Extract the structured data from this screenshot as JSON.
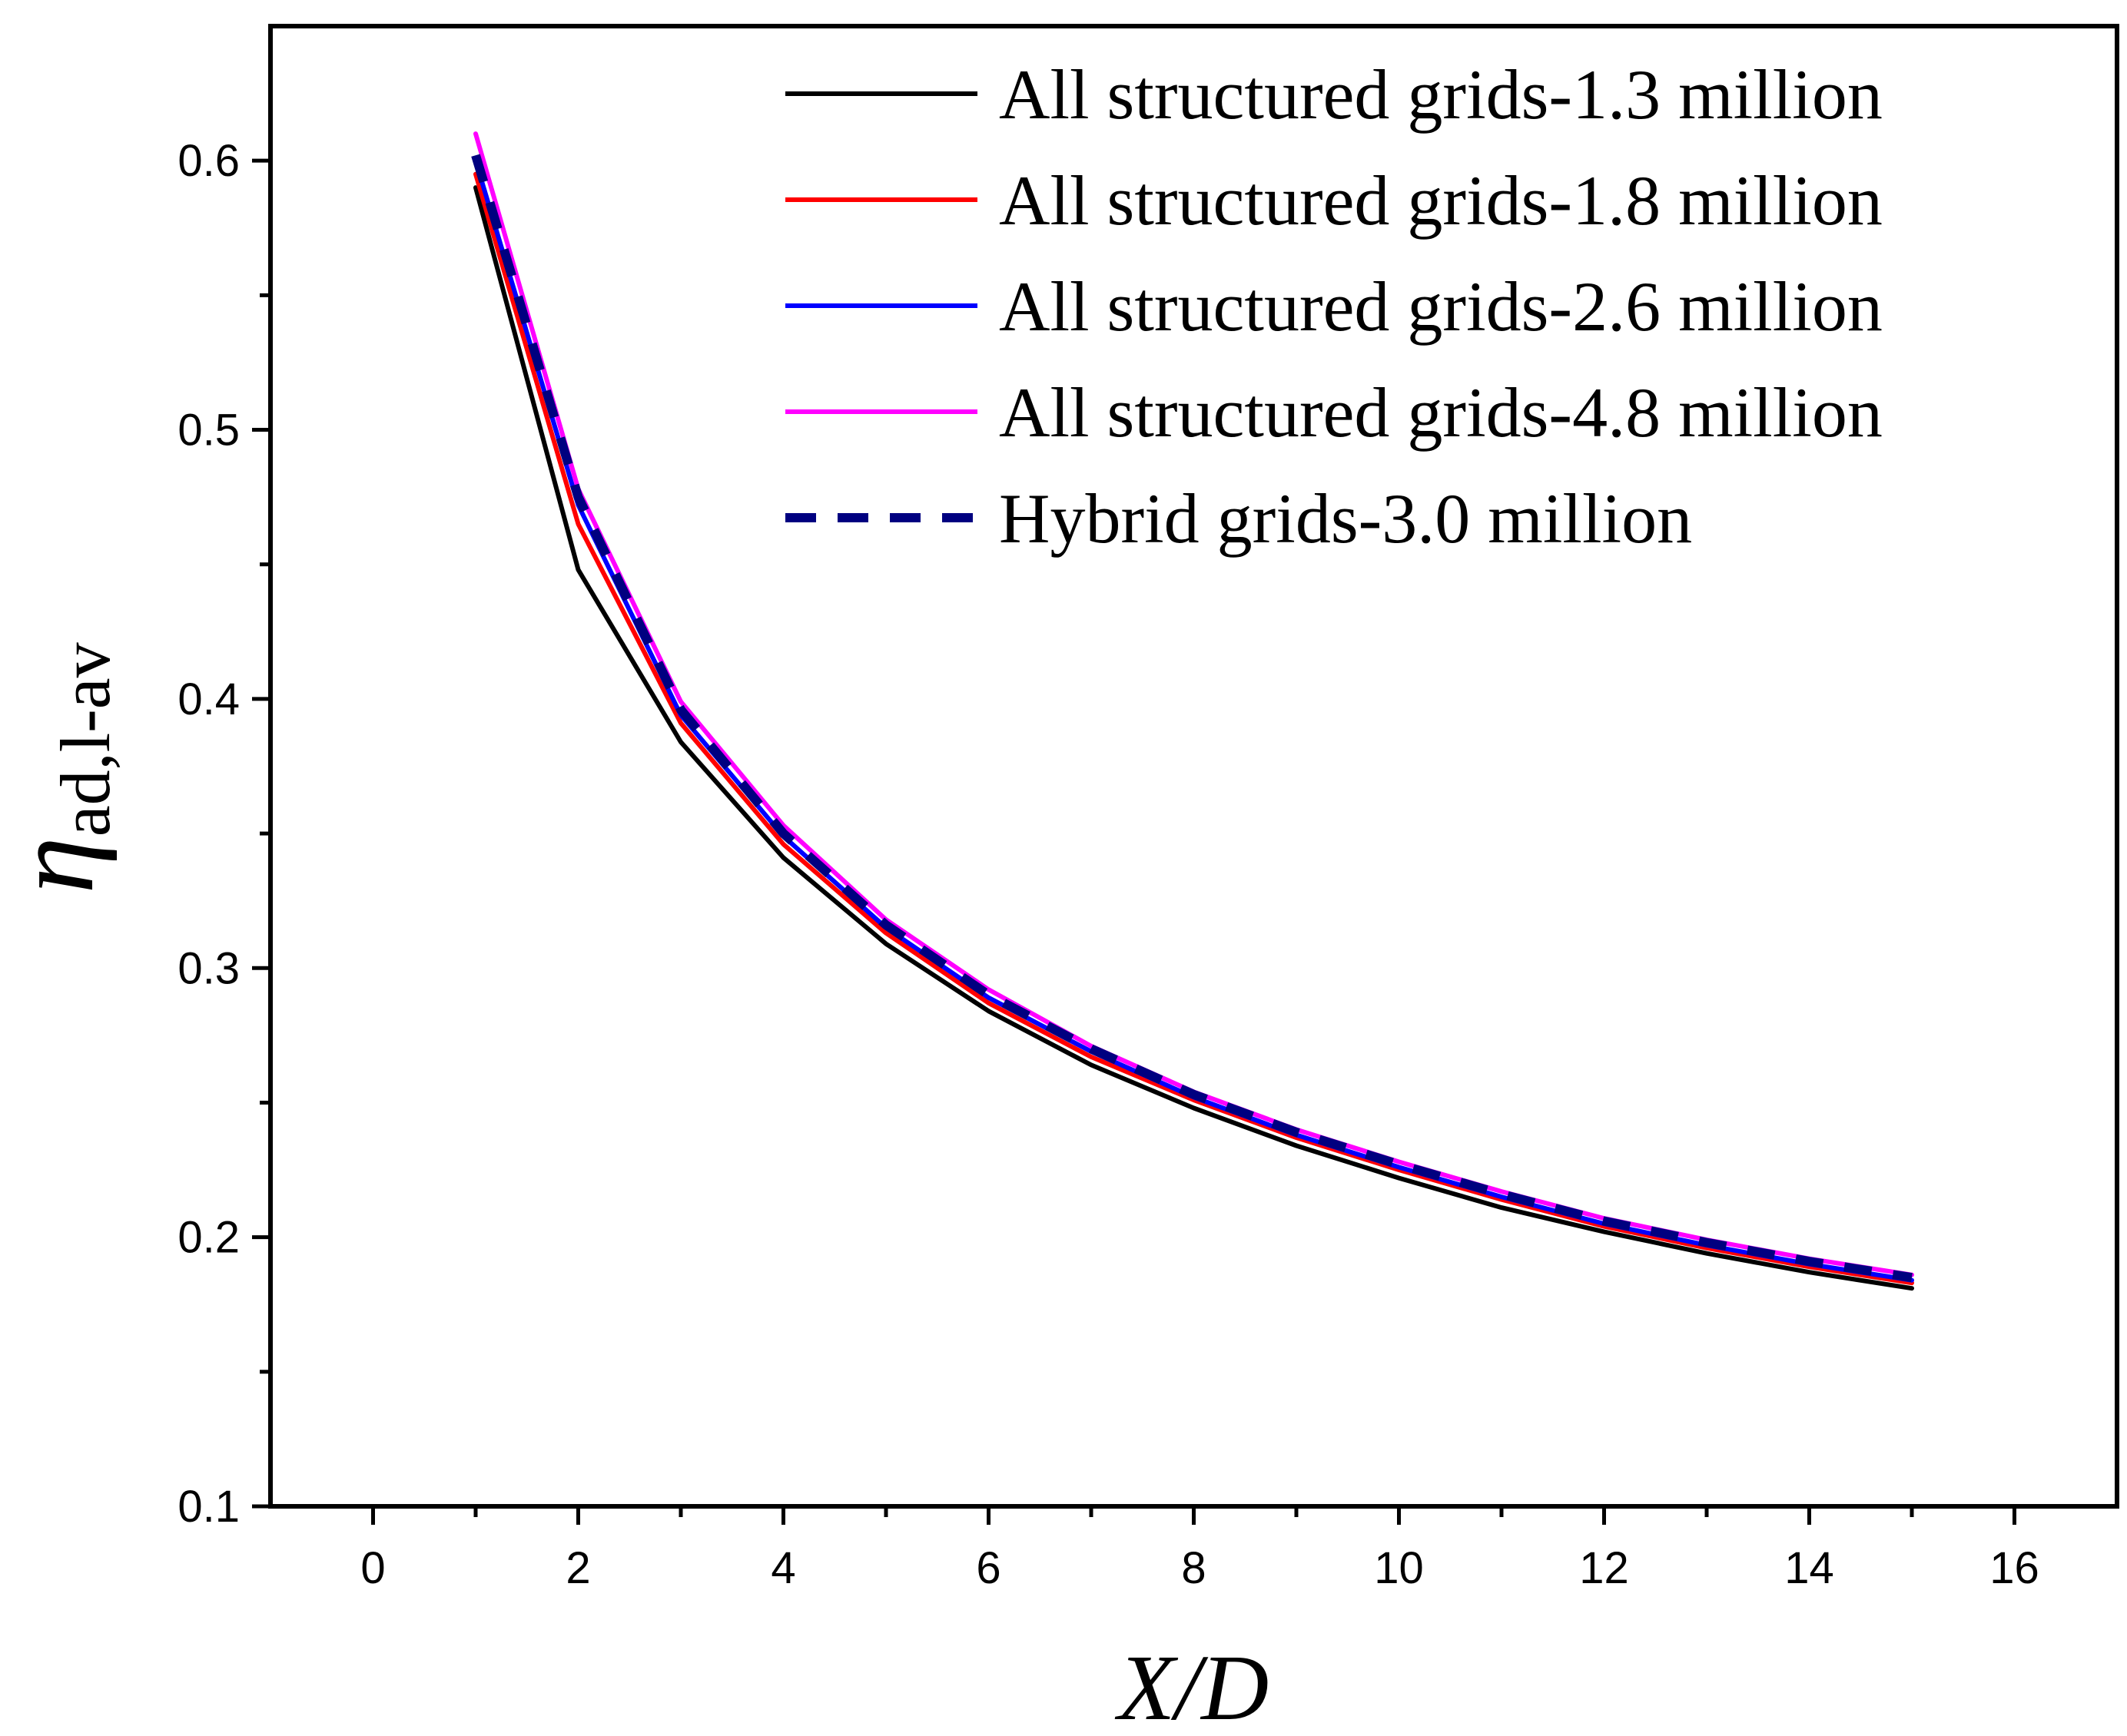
{
  "chart_data": {
    "type": "line",
    "xlabel": "X/D",
    "ylabel": {
      "symbol": "η",
      "subscript": "ad,l-av"
    },
    "xlim": [
      -1,
      17
    ],
    "ylim": [
      0.1,
      0.65
    ],
    "x_ticks": [
      0,
      2,
      4,
      6,
      8,
      10,
      12,
      14,
      16
    ],
    "x_tick_labels": [
      "0",
      "2",
      "4",
      "6",
      "8",
      "10",
      "12",
      "14",
      "16"
    ],
    "y_ticks": [
      0.1,
      0.2,
      0.3,
      0.4,
      0.5,
      0.6
    ],
    "y_tick_labels": [
      "0.1",
      "0.2",
      "0.3",
      "0.4",
      "0.5",
      "0.6"
    ],
    "legend_position": "top-right",
    "x": [
      1,
      2,
      3,
      4,
      5,
      6,
      7,
      8,
      9,
      10,
      11,
      12,
      13,
      14,
      15
    ],
    "series": [
      {
        "name": "All structured grids-1.3 million",
        "color": "#000000",
        "style": "solid",
        "values": [
          0.59,
          0.448,
          0.384,
          0.341,
          0.309,
          0.284,
          0.264,
          0.248,
          0.234,
          0.222,
          0.211,
          0.202,
          0.194,
          0.187,
          0.181
        ]
      },
      {
        "name": "All structured grids-1.8 million",
        "color": "#ff0000",
        "style": "solid",
        "values": [
          0.595,
          0.465,
          0.391,
          0.346,
          0.313,
          0.287,
          0.267,
          0.251,
          0.237,
          0.225,
          0.214,
          0.204,
          0.196,
          0.189,
          0.183
        ]
      },
      {
        "name": "All structured grids-2.6 million",
        "color": "#0000ff",
        "style": "solid",
        "values": [
          0.6,
          0.472,
          0.394,
          0.349,
          0.315,
          0.289,
          0.269,
          0.252,
          0.238,
          0.226,
          0.215,
          0.205,
          0.197,
          0.19,
          0.184
        ]
      },
      {
        "name": "All structured grids-4.8 million",
        "color": "#ff00ff",
        "style": "solid",
        "values": [
          0.61,
          0.478,
          0.399,
          0.353,
          0.318,
          0.292,
          0.271,
          0.254,
          0.24,
          0.228,
          0.217,
          0.207,
          0.199,
          0.192,
          0.186
        ]
      },
      {
        "name": "Hybrid grids-3.0 million",
        "color": "#000080",
        "style": "dashed",
        "values": [
          0.602,
          0.475,
          0.396,
          0.35,
          0.316,
          0.29,
          0.27,
          0.253,
          0.239,
          0.227,
          0.216,
          0.206,
          0.198,
          0.191,
          0.185
        ]
      }
    ]
  }
}
